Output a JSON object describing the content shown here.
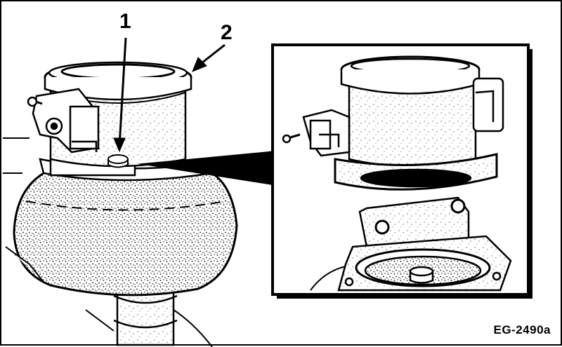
{
  "callouts": {
    "one": "1",
    "two": "2"
  },
  "figure_code": "EG-2490a",
  "colors": {
    "ink": "#000000",
    "paper": "#ffffff",
    "stipple": "#1a1a1a"
  }
}
